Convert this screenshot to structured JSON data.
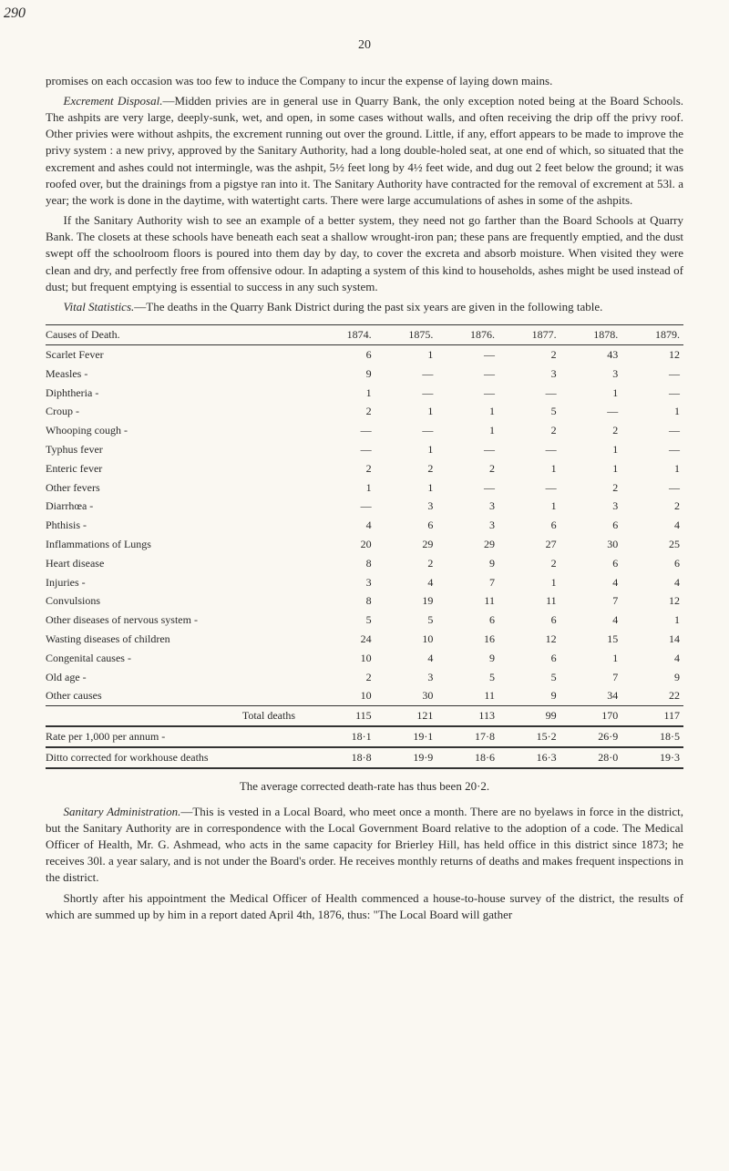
{
  "handwritten_corner": "290",
  "page_number": "20",
  "para1": "promises on each occasion was too few to induce the Company to incur the expense of laying down mains.",
  "para2_lead": "Excrement Disposal.",
  "para2": "—Midden privies are in general use in Quarry Bank, the only exception noted being at the Board Schools. The ashpits are very large, deeply-sunk, wet, and open, in some cases without walls, and often receiving the drip off the privy roof. Other privies were without ashpits, the excrement running out over the ground. Little, if any, effort appears to be made to improve the privy system : a new privy, approved by the Sanitary Authority, had a long double-holed seat, at one end of which, so situated that the excrement and ashes could not intermingle, was the ashpit, 5½ feet long by 4½ feet wide, and dug out 2 feet below the ground; it was roofed over, but the drainings from a pigstye ran into it. The Sanitary Authority have contracted for the removal of excrement at 53l. a year; the work is done in the daytime, with watertight carts. There were large accumulations of ashes in some of the ashpits.",
  "para3": "If the Sanitary Authority wish to see an example of a better system, they need not go farther than the Board Schools at Quarry Bank. The closets at these schools have beneath each seat a shallow wrought-iron pan; these pans are frequently emptied, and the dust swept off the schoolroom floors is poured into them day by day, to cover the excreta and absorb moisture. When visited they were clean and dry, and perfectly free from offensive odour. In adapting a system of this kind to households, ashes might be used instead of dust; but frequent emptying is essential to success in any such system.",
  "para4_lead": "Vital Statistics.",
  "para4": "—The deaths in the Quarry Bank District during the past six years are given in the following table.",
  "table": {
    "header_cause": "Causes of Death.",
    "years": [
      "1874.",
      "1875.",
      "1876.",
      "1877.",
      "1878.",
      "1879."
    ],
    "rows": [
      {
        "cause": "Scarlet Fever",
        "v": [
          "6",
          "1",
          "—",
          "2",
          "43",
          "12"
        ]
      },
      {
        "cause": "Measles -",
        "v": [
          "9",
          "—",
          "—",
          "3",
          "3",
          "—"
        ]
      },
      {
        "cause": "Diphtheria -",
        "v": [
          "1",
          "—",
          "—",
          "—",
          "1",
          "—"
        ]
      },
      {
        "cause": "Croup -",
        "v": [
          "2",
          "1",
          "1",
          "5",
          "—",
          "1"
        ]
      },
      {
        "cause": "Whooping cough -",
        "v": [
          "—",
          "—",
          "1",
          "2",
          "2",
          "—"
        ]
      },
      {
        "cause": "Typhus fever",
        "v": [
          "—",
          "1",
          "—",
          "—",
          "1",
          "—"
        ]
      },
      {
        "cause": "Enteric fever",
        "v": [
          "2",
          "2",
          "2",
          "1",
          "1",
          "1"
        ]
      },
      {
        "cause": "Other fevers",
        "v": [
          "1",
          "1",
          "—",
          "—",
          "2",
          "—"
        ]
      },
      {
        "cause": "Diarrhœa -",
        "v": [
          "—",
          "3",
          "3",
          "1",
          "3",
          "2"
        ]
      },
      {
        "cause": "Phthisis -",
        "v": [
          "4",
          "6",
          "3",
          "6",
          "6",
          "4"
        ]
      },
      {
        "cause": "Inflammations of Lungs",
        "v": [
          "20",
          "29",
          "29",
          "27",
          "30",
          "25"
        ]
      },
      {
        "cause": "Heart disease",
        "v": [
          "8",
          "2",
          "9",
          "2",
          "6",
          "6"
        ]
      },
      {
        "cause": "Injuries -",
        "v": [
          "3",
          "4",
          "7",
          "1",
          "4",
          "4"
        ]
      },
      {
        "cause": "Convulsions",
        "v": [
          "8",
          "19",
          "11",
          "11",
          "7",
          "12"
        ]
      },
      {
        "cause": "Other diseases of nervous system -",
        "v": [
          "5",
          "5",
          "6",
          "6",
          "4",
          "1"
        ]
      },
      {
        "cause": "Wasting diseases of children",
        "v": [
          "24",
          "10",
          "16",
          "12",
          "15",
          "14"
        ]
      },
      {
        "cause": "Congenital causes -",
        "v": [
          "10",
          "4",
          "9",
          "6",
          "1",
          "4"
        ]
      },
      {
        "cause": "Old age -",
        "v": [
          "2",
          "3",
          "5",
          "5",
          "7",
          "9"
        ]
      },
      {
        "cause": "Other causes",
        "v": [
          "10",
          "30",
          "11",
          "9",
          "34",
          "22"
        ]
      }
    ],
    "total_label": "Total deaths",
    "total": [
      "115",
      "121",
      "113",
      "99",
      "170",
      "117"
    ],
    "rate_label": "Rate per 1,000 per annum -",
    "rate": [
      "18·1",
      "19·1",
      "17·8",
      "15·2",
      "26·9",
      "18·5"
    ],
    "ditto_label": "Ditto corrected for workhouse deaths",
    "ditto": [
      "18·8",
      "19·9",
      "18·6",
      "16·3",
      "28·0",
      "19·3"
    ]
  },
  "avg_line": "The average corrected death-rate has thus been 20·2.",
  "para5_lead": "Sanitary Administration.",
  "para5": "—This is vested in a Local Board, who meet once a month. There are no byelaws in force in the district, but the Sanitary Authority are in correspondence with the Local Government Board relative to the adoption of a code. The Medical Officer of Health, Mr. G. Ashmead, who acts in the same capacity for Brierley Hill, has held office in this district since 1873; he receives 30l. a year salary, and is not under the Board's order. He receives monthly returns of deaths and makes frequent inspections in the district.",
  "para6": "Shortly after his appointment the Medical Officer of Health commenced a house-to-house survey of the district, the results of which are summed up by him in a report dated April 4th, 1876, thus: \"The Local Board will gather"
}
